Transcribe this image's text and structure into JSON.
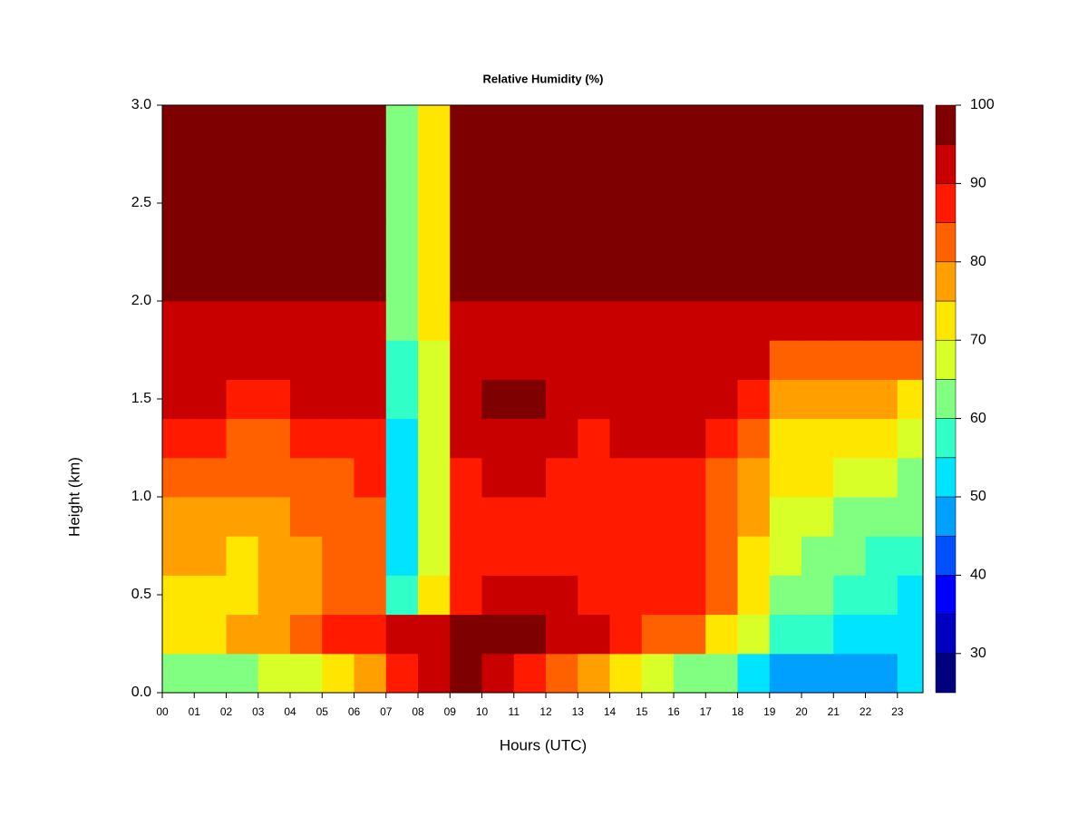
{
  "chart_data": {
    "type": "contour",
    "title": "Relative Humidity (%)",
    "x_label": "Hours (UTC)",
    "y_label": "Height (km)",
    "xlim": [
      0,
      23.8
    ],
    "ylim": [
      0,
      3
    ],
    "xticks": [
      {
        "value": 0,
        "label": "00"
      },
      {
        "value": 1,
        "label": "01"
      },
      {
        "value": 2,
        "label": "02"
      },
      {
        "value": 3,
        "label": "03"
      },
      {
        "value": 4,
        "label": "04"
      },
      {
        "value": 5,
        "label": "05"
      },
      {
        "value": 6,
        "label": "06"
      },
      {
        "value": 7,
        "label": "07"
      },
      {
        "value": 8,
        "label": "08"
      },
      {
        "value": 9,
        "label": "09"
      },
      10,
      11,
      12,
      13,
      14,
      15,
      16,
      17,
      18,
      19,
      20,
      21,
      22,
      23
    ],
    "yticks": [
      {
        "value": 0,
        "label": "0.0"
      },
      0.5,
      {
        "value": 1,
        "label": "1.0"
      },
      1.5,
      {
        "value": 2,
        "label": "2.0"
      },
      2.5,
      {
        "value": 3,
        "label": "3.0"
      }
    ],
    "x": [
      0,
      1,
      2,
      3,
      4,
      5,
      6,
      7,
      8,
      9,
      10,
      11,
      12,
      13,
      14,
      15,
      16,
      17,
      18,
      19,
      20,
      21,
      22,
      23
    ],
    "y": [
      0,
      0.2,
      0.4,
      0.6,
      0.8,
      1,
      1.2,
      1.4,
      1.6,
      1.8,
      2,
      2.2,
      2.4,
      2.6,
      2.8
    ],
    "z": [
      [
        60,
        62,
        62,
        66,
        68,
        72,
        75,
        88,
        92,
        95,
        90,
        88,
        80,
        76,
        70,
        68,
        64,
        60,
        54,
        48,
        46,
        46,
        48,
        50
      ],
      [
        72,
        74,
        76,
        78,
        80,
        86,
        88,
        90,
        94,
        96,
        97,
        96,
        92,
        90,
        86,
        82,
        80,
        74,
        68,
        58,
        56,
        54,
        54,
        52
      ],
      [
        74,
        74,
        74,
        76,
        78,
        80,
        82,
        58,
        70,
        88,
        92,
        92,
        90,
        88,
        88,
        86,
        86,
        80,
        70,
        64,
        60,
        58,
        56,
        54
      ],
      [
        76,
        76,
        74,
        76,
        78,
        80,
        82,
        52,
        66,
        86,
        88,
        88,
        88,
        86,
        86,
        86,
        86,
        82,
        74,
        66,
        62,
        60,
        58,
        56
      ],
      [
        78,
        78,
        78,
        78,
        80,
        82,
        84,
        50,
        65,
        86,
        88,
        88,
        86,
        86,
        86,
        86,
        86,
        82,
        76,
        68,
        66,
        64,
        62,
        60
      ],
      [
        82,
        82,
        80,
        80,
        82,
        84,
        86,
        50,
        65,
        88,
        90,
        90,
        88,
        86,
        88,
        88,
        88,
        84,
        78,
        72,
        70,
        68,
        66,
        64
      ],
      [
        86,
        86,
        84,
        84,
        86,
        88,
        88,
        52,
        65,
        90,
        92,
        92,
        90,
        88,
        90,
        90,
        90,
        86,
        82,
        74,
        72,
        72,
        70,
        68
      ],
      [
        90,
        90,
        88,
        88,
        90,
        92,
        90,
        55,
        65,
        92,
        95,
        95,
        92,
        92,
        92,
        92,
        92,
        90,
        86,
        78,
        76,
        76,
        76,
        74
      ],
      [
        90,
        90,
        90,
        90,
        92,
        92,
        92,
        55,
        66,
        92,
        93,
        93,
        92,
        92,
        92,
        92,
        92,
        92,
        90,
        84,
        82,
        82,
        82,
        82
      ],
      [
        93,
        93,
        93,
        93,
        93,
        93,
        93,
        60,
        70,
        93,
        93,
        93,
        93,
        93,
        93,
        93,
        93,
        93,
        93,
        92,
        92,
        92,
        92,
        92
      ],
      [
        97,
        97,
        97,
        97,
        97,
        97,
        97,
        60,
        70,
        97,
        97,
        97,
        97,
        97,
        97,
        97,
        97,
        97,
        97,
        97,
        97,
        97,
        97,
        97
      ],
      [
        97,
        97,
        97,
        97,
        97,
        97,
        97,
        60,
        70,
        97,
        97,
        97,
        97,
        97,
        97,
        97,
        97,
        97,
        97,
        97,
        97,
        97,
        97,
        97
      ],
      [
        97,
        97,
        97,
        97,
        97,
        97,
        97,
        60,
        70,
        97,
        97,
        97,
        97,
        97,
        97,
        97,
        97,
        97,
        97,
        97,
        97,
        97,
        97,
        97
      ],
      [
        97,
        97,
        97,
        97,
        97,
        97,
        97,
        60,
        70,
        97,
        97,
        97,
        97,
        97,
        97,
        97,
        97,
        97,
        97,
        97,
        97,
        97,
        97,
        97
      ],
      [
        97,
        97,
        97,
        97,
        97,
        97,
        97,
        60,
        70,
        97,
        97,
        97,
        97,
        97,
        97,
        97,
        97,
        97,
        97,
        97,
        97,
        97,
        97,
        97
      ]
    ],
    "levels": [
      25,
      30,
      35,
      40,
      45,
      50,
      55,
      60,
      65,
      70,
      75,
      80,
      85,
      90,
      95,
      100
    ],
    "colors": [
      "#00007f",
      "#0000c0",
      "#0000ff",
      "#0050ff",
      "#00a0ff",
      "#00e4ff",
      "#30ffc8",
      "#80ff80",
      "#d8ff28",
      "#ffe600",
      "#ffa000",
      "#ff6000",
      "#ff1a00",
      "#c80000",
      "#7f0000"
    ],
    "colorbar_ticks": [
      30,
      40,
      50,
      60,
      70,
      80,
      90,
      100
    ]
  }
}
